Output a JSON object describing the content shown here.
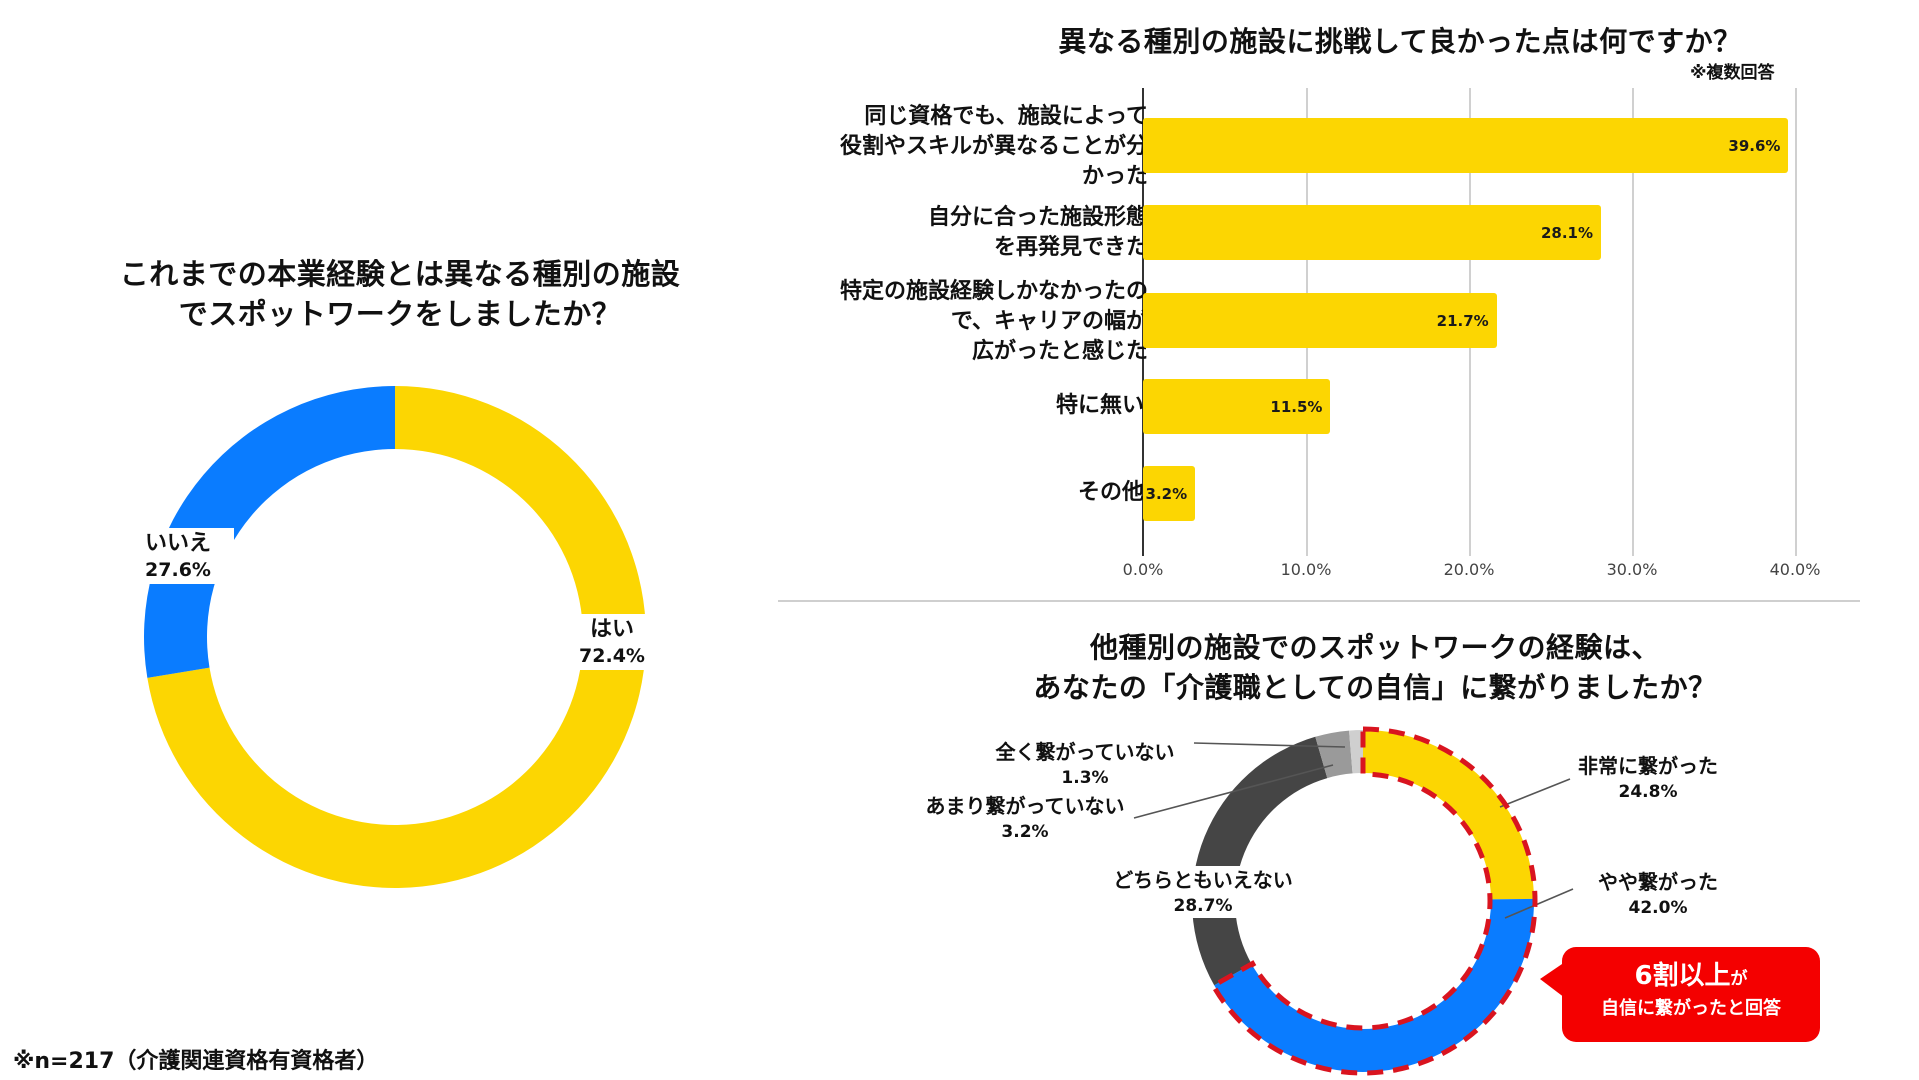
{
  "footnote": "※n=217（介護関連資格有資格者）",
  "colors": {
    "yellow": "#FCD602",
    "blue": "#0A7CFF",
    "dark_gray": "#454545",
    "mid_gray": "#9A9A9A",
    "light_gray": "#CFCFCF",
    "callout_red": "#F40000",
    "dash_red": "#D9141F"
  },
  "chart_data": [
    {
      "type": "pie",
      "variant": "donut",
      "title": "これまでの本業経験とは異なる種別の施設でスポットワークをしましたか？",
      "title_lines": [
        "これまでの本業経験とは異なる種別の施設",
        "でスポットワークをしましたか？"
      ],
      "categories": [
        "はい",
        "いいえ"
      ],
      "values": [
        72.4,
        27.6
      ],
      "labels": [
        {
          "name": "はい",
          "value": "72.4%"
        },
        {
          "name": "いいえ",
          "value": "27.6%"
        }
      ],
      "colors": [
        "#FCD602",
        "#0A7CFF"
      ]
    },
    {
      "type": "bar",
      "orientation": "horizontal",
      "title": "異なる種別の施設に挑戦して良かった点は何ですか？",
      "subtitle": "※複数回答",
      "categories": [
        "同じ資格でも、施設によって役割やスキルが異なることが分かった",
        "自分に合った施設形態を再発見できた",
        "特定の施設経験しかなかったので、キャリアの幅が広がったと感じた",
        "特に無い",
        "その他"
      ],
      "category_lines": [
        [
          "同じ資格でも、施設によって",
          "役割やスキルが異なることが分",
          "かった"
        ],
        [
          "自分に合った施設形態",
          "を再発見できた"
        ],
        [
          "特定の施設経験しかなかったの",
          "で、キャリアの幅が",
          "広がったと感じた"
        ],
        [
          "特に無い"
        ],
        [
          "その他"
        ]
      ],
      "values": [
        39.6,
        28.1,
        21.7,
        11.5,
        3.2
      ],
      "value_labels": [
        "39.6%",
        "28.1%",
        "21.7%",
        "11.5%",
        "3.2%"
      ],
      "xlabel": "",
      "ylabel": "",
      "xlim": [
        0,
        40
      ],
      "xticks": [
        "0.0%",
        "10.0%",
        "20.0%",
        "30.0%",
        "40.0%"
      ],
      "grid": true,
      "color": "#FCD602"
    },
    {
      "type": "pie",
      "variant": "donut",
      "title": "他種別の施設でのスポットワークの経験は、あなたの「介護職としての自信」に繋がりましたか？",
      "title_lines": [
        "他種別の施設でのスポットワークの経験は、",
        "あなたの「介護職としての自信」に繋がりましたか？"
      ],
      "categories": [
        "非常に繋がった",
        "やや繋がった",
        "どちらともいえない",
        "あまり繋がっていない",
        "全く繋がっていない"
      ],
      "values": [
        24.8,
        42.0,
        28.7,
        3.2,
        1.3
      ],
      "labels": [
        {
          "name": "非常に繋がった",
          "value": "24.8%"
        },
        {
          "name": "やや繋がった",
          "value": "42.0%"
        },
        {
          "name": "どちらともいえない",
          "value": "28.7%"
        },
        {
          "name": "あまり繋がっていない",
          "value": "3.2%"
        },
        {
          "name": "全く繋がっていない",
          "value": "1.3%"
        }
      ],
      "colors": [
        "#FCD602",
        "#0A7CFF",
        "#454545",
        "#9A9A9A",
        "#CFCFCF"
      ],
      "annotation": {
        "line1_main": "6割以上",
        "line1_suffix": "が",
        "line2": "自信に繋がったと回答"
      }
    }
  ]
}
